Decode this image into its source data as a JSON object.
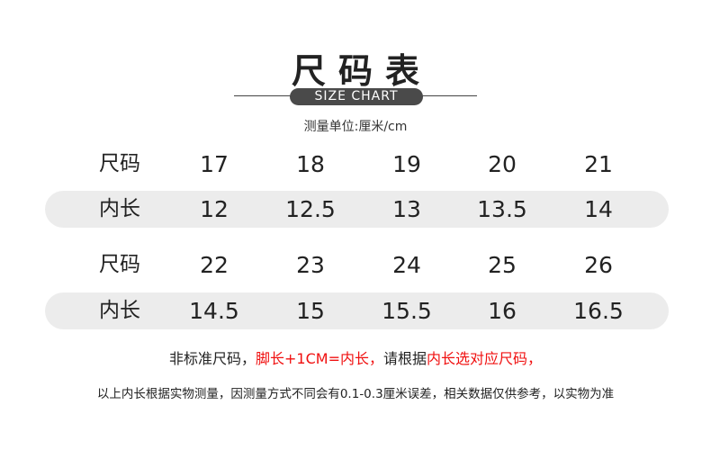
{
  "title": "尺码表",
  "subtitle": "SIZE CHART",
  "unit": "测量单位:厘米/cm",
  "rows": [
    {
      "label": "尺码",
      "values": [
        "17",
        "18",
        "19",
        "20",
        "21"
      ]
    },
    {
      "label": "内长",
      "values": [
        "12",
        "12.5",
        "13",
        "13.5",
        "14"
      ]
    },
    {
      "label": "尺码",
      "values": [
        "22",
        "23",
        "24",
        "25",
        "26"
      ]
    },
    {
      "label": "内长",
      "values": [
        "14.5",
        "15",
        "15.5",
        "16",
        "16.5"
      ]
    }
  ],
  "note1": {
    "a": "非标准尺码，",
    "b": "脚长+1CM=内长，",
    "c": "请根据",
    "d": "内长选对应尺码，"
  },
  "note2": "以上内长根据实物测量，因测量方式不同会有0.1-0.3厘米误差，相关数据仅供参考，以实物为准",
  "colors": {
    "shade": "#ececec",
    "accent": "#f01010",
    "badge": "#4a4a4a"
  }
}
